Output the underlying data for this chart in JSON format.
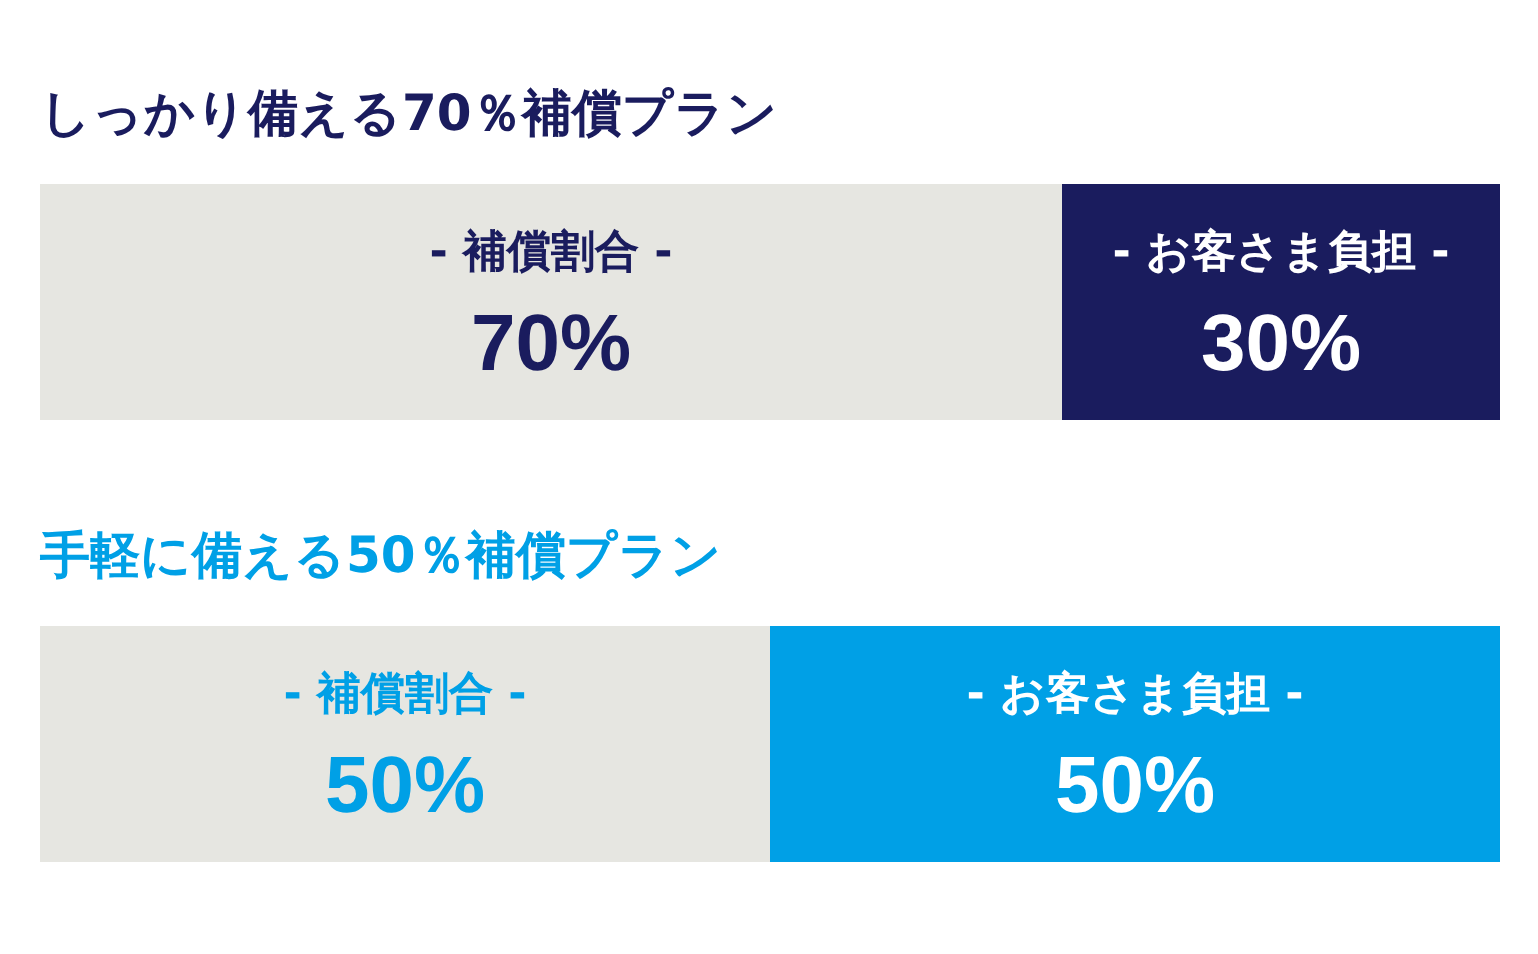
{
  "chart_data": [
    {
      "type": "bar",
      "title": "しっかり備える70％補償プラン",
      "orientation": "horizontal",
      "stacked": true,
      "categories": [
        null
      ],
      "xlim": [
        0,
        100
      ],
      "tick_labels": false,
      "series": [
        {
          "name": "- 補償割合 -",
          "color": "#e6e6e1",
          "values": [
            70
          ],
          "value_labels": [
            "70%"
          ]
        },
        {
          "name": "- お客さま負担 -",
          "color": "#1a1c5e",
          "values": [
            30
          ],
          "value_labels": [
            "30%"
          ]
        }
      ]
    },
    {
      "type": "bar",
      "title": "手軽に備える50％補償プラン",
      "orientation": "horizontal",
      "stacked": true,
      "categories": [
        null
      ],
      "xlim": [
        0,
        100
      ],
      "tick_labels": false,
      "series": [
        {
          "name": "- 補償割合 -",
          "color": "#e6e6e1",
          "values": [
            50
          ],
          "value_labels": [
            "50%"
          ]
        },
        {
          "name": "- お客さま負担 -",
          "color": "#00a0e6",
          "values": [
            50
          ],
          "value_labels": [
            "50%"
          ]
        }
      ]
    }
  ]
}
